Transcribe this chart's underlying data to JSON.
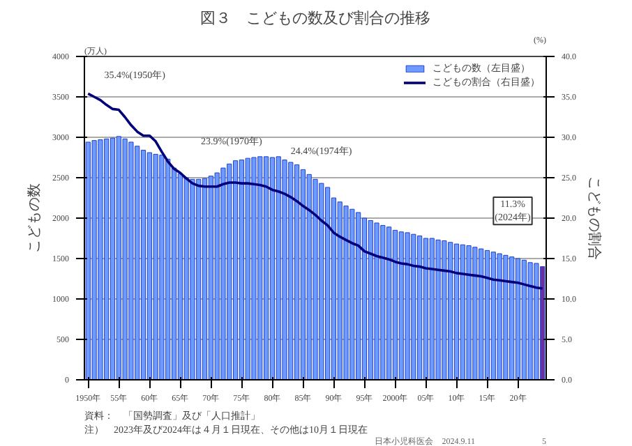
{
  "chart_data": {
    "type": "bar",
    "title": "図３　こどもの数及び割合の推移",
    "ylabel": "こどもの数",
    "y2label": "こどもの割合",
    "categories": [
      "1950年",
      null,
      null,
      null,
      null,
      "55年",
      null,
      null,
      null,
      null,
      "60年",
      null,
      null,
      null,
      null,
      "65年",
      null,
      null,
      null,
      null,
      "70年",
      null,
      null,
      null,
      null,
      "75年",
      null,
      null,
      null,
      null,
      "80年",
      null,
      null,
      null,
      null,
      "85年",
      null,
      null,
      null,
      null,
      "90年",
      null,
      null,
      null,
      null,
      "95年",
      null,
      null,
      null,
      null,
      "2000年",
      null,
      null,
      null,
      null,
      "05年",
      null,
      null,
      null,
      null,
      "10年",
      null,
      null,
      null,
      null,
      "15年",
      null,
      null,
      null,
      null,
      "20年",
      null,
      null,
      null,
      null
    ],
    "series": [
      {
        "name": "こどもの数（左目盛）",
        "color": "#6e9bff",
        "colors": [
          "#6e9bff",
          "#6e9bff",
          "#6e9bff",
          "#6e9bff",
          "#6e9bff",
          "#6e9bff",
          "#6e9bff",
          "#6e9bff",
          "#6e9bff",
          "#6e9bff",
          "#6e9bff",
          "#6e9bff",
          "#6e9bff",
          "#6e9bff",
          "#6e9bff",
          "#6e9bff",
          "#6e9bff",
          "#6e9bff",
          "#6e9bff",
          "#6e9bff",
          "#6e9bff",
          "#6e9bff",
          "#6e9bff",
          "#6e9bff",
          "#6e9bff",
          "#6e9bff",
          "#6e9bff",
          "#6e9bff",
          "#6e9bff",
          "#6e9bff",
          "#6e9bff",
          "#6e9bff",
          "#6e9bff",
          "#6e9bff",
          "#6e9bff",
          "#6e9bff",
          "#6e9bff",
          "#6e9bff",
          "#6e9bff",
          "#6e9bff",
          "#6e9bff",
          "#6e9bff",
          "#6e9bff",
          "#6e9bff",
          "#6e9bff",
          "#6e9bff",
          "#6e9bff",
          "#6e9bff",
          "#6e9bff",
          "#6e9bff",
          "#6e9bff",
          "#6e9bff",
          "#6e9bff",
          "#6e9bff",
          "#6e9bff",
          "#6e9bff",
          "#6e9bff",
          "#6e9bff",
          "#6e9bff",
          "#6e9bff",
          "#6e9bff",
          "#6e9bff",
          "#6e9bff",
          "#6e9bff",
          "#6e9bff",
          "#6e9bff",
          "#6e9bff",
          "#6e9bff",
          "#6e9bff",
          "#6e9bff",
          "#6e9bff",
          "#6e9bff",
          "#6e9bff",
          "#6e9bff",
          "#6a2fa0"
        ],
        "values": [
          2940,
          2960,
          2970,
          2980,
          2990,
          3010,
          2980,
          2940,
          2890,
          2840,
          2810,
          2790,
          2780,
          2730,
          2620,
          2550,
          2500,
          2480,
          2480,
          2490,
          2520,
          2560,
          2620,
          2670,
          2710,
          2720,
          2740,
          2750,
          2760,
          2760,
          2750,
          2760,
          2720,
          2690,
          2660,
          2600,
          2540,
          2480,
          2430,
          2380,
          2250,
          2200,
          2150,
          2110,
          2070,
          2000,
          1970,
          1940,
          1910,
          1890,
          1850,
          1830,
          1820,
          1800,
          1780,
          1750,
          1750,
          1730,
          1720,
          1700,
          1680,
          1670,
          1660,
          1640,
          1620,
          1600,
          1580,
          1560,
          1540,
          1520,
          1500,
          1480,
          1450,
          1440,
          1400
        ]
      },
      {
        "name": "こどもの割合（右目盛）",
        "type": "line",
        "axis": "y2",
        "color": "#00007a",
        "values": [
          35.4,
          35.0,
          34.6,
          34.0,
          33.5,
          33.4,
          32.5,
          31.5,
          30.7,
          30.2,
          30.2,
          29.5,
          28.2,
          27.0,
          26.1,
          25.6,
          24.9,
          24.3,
          24.0,
          23.9,
          23.9,
          23.9,
          24.2,
          24.4,
          24.4,
          24.3,
          24.3,
          24.2,
          24.1,
          23.9,
          23.5,
          23.3,
          23.0,
          22.6,
          22.1,
          21.5,
          21.0,
          20.4,
          19.7,
          19.1,
          18.2,
          17.7,
          17.3,
          16.9,
          16.6,
          15.9,
          15.6,
          15.3,
          15.1,
          14.9,
          14.6,
          14.4,
          14.3,
          14.1,
          14.0,
          13.8,
          13.7,
          13.6,
          13.5,
          13.4,
          13.2,
          13.1,
          13.0,
          12.9,
          12.8,
          12.6,
          12.4,
          12.3,
          12.2,
          12.1,
          12.0,
          11.8,
          11.6,
          11.4,
          11.3
        ]
      }
    ],
    "ylim": [
      0,
      4000
    ],
    "yticks": [
      0,
      500,
      1000,
      1500,
      2000,
      2500,
      3000,
      3500,
      4000
    ],
    "y2lim": [
      0,
      40
    ],
    "y2ticks": [
      {
        "value": 0,
        "label": "0.0"
      },
      {
        "value": 5,
        "label": "5.0"
      },
      {
        "value": 10,
        "label": "10.0"
      },
      {
        "value": 15,
        "label": "15.0"
      },
      {
        "value": 20,
        "label": "20.0"
      },
      {
        "value": 25,
        "label": "25.0"
      },
      {
        "value": 30,
        "label": "30.0"
      },
      {
        "value": 35,
        "label": "35.0"
      },
      {
        "value": 40,
        "label": "40.0"
      }
    ],
    "grid": "y",
    "legend": "top right",
    "marker": "none",
    "line_style": "solid",
    "annotations": [
      "(万人)",
      "(%)",
      "資料：　「国勢調査」及び「人口推計」",
      "注）　2023年及び2024年は４月１日現在、その他は10月１日現在",
      "日本小児科医会　2024.9.11",
      "5",
      "35.4%(1950年)",
      "23.9%(1970年)",
      "24.4%(1974年)",
      "11.3%\n(2024年)"
    ]
  }
}
